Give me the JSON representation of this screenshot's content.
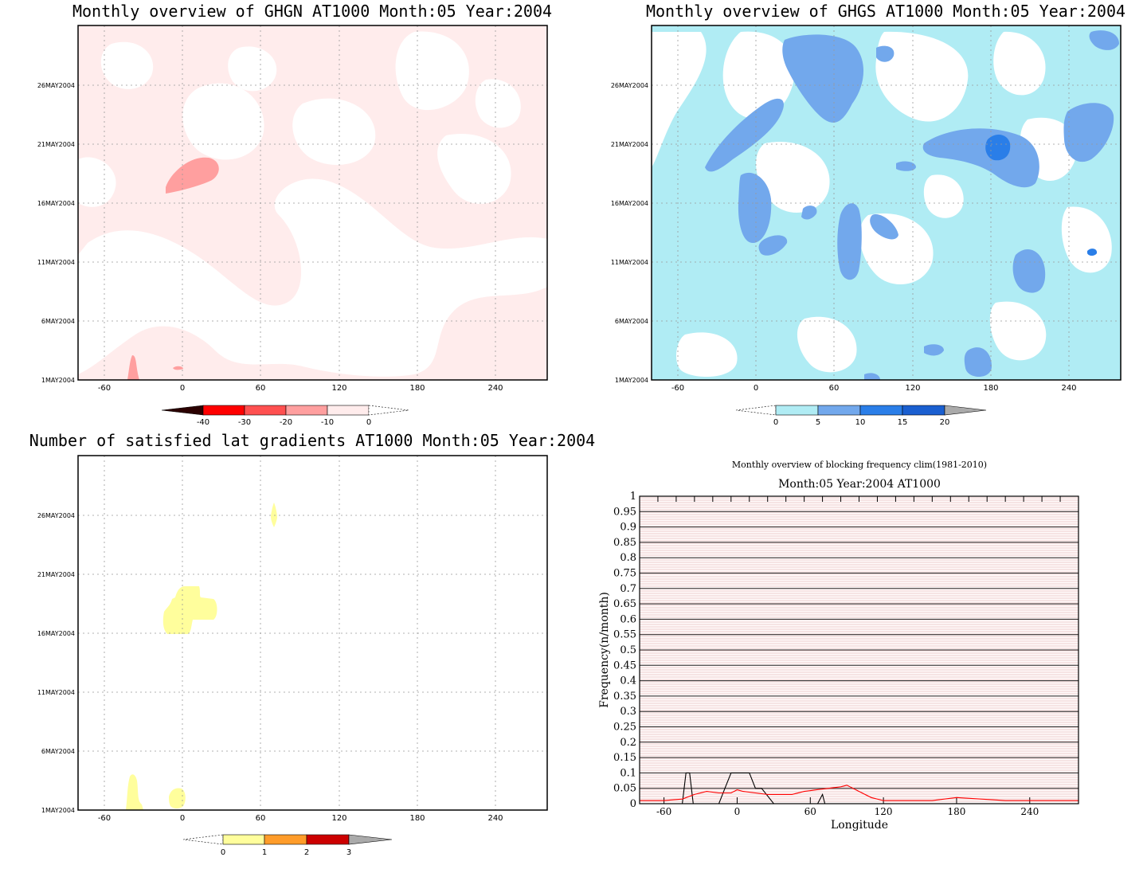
{
  "colors": {
    "ghgn_shade": "#ffecec",
    "ghgn_mid": "#ff9f9f",
    "ghgs_light": "#b0ecf4",
    "ghgs_mid": "#72a8ec",
    "ghgs_dark": "#2a7ee8",
    "grad_fill": "#fffe9c"
  },
  "chart_data": [
    {
      "type": "heatmap",
      "title": "Monthly overview of GHGN AT1000 Month:05 Year:2004",
      "x_ticks": [
        "-60",
        "0",
        "60",
        "120",
        "180",
        "240"
      ],
      "y_ticks": [
        "1MAY2004",
        "6MAY2004",
        "11MAY2004",
        "16MAY2004",
        "21MAY2004",
        "26MAY2004"
      ],
      "xlim": [
        -80,
        280
      ],
      "ylim": [
        1,
        31
      ],
      "grid": true,
      "colorbar": {
        "labels": [
          "-40",
          "-30",
          "-20",
          "-10",
          "0"
        ],
        "colors": [
          "#2b0000",
          "#ff0000",
          "#ff5050",
          "#ff9f9f",
          "#ffecec"
        ]
      }
    },
    {
      "type": "heatmap",
      "title": "Monthly overview of GHGS AT1000 Month:05 Year:2004",
      "x_ticks": [
        "-60",
        "0",
        "60",
        "120",
        "180",
        "240"
      ],
      "y_ticks": [
        "1MAY2004",
        "6MAY2004",
        "11MAY2004",
        "16MAY2004",
        "21MAY2004",
        "26MAY2004"
      ],
      "xlim": [
        -80,
        280
      ],
      "ylim": [
        1,
        31
      ],
      "grid": true,
      "colorbar": {
        "labels": [
          "0",
          "5",
          "10",
          "15",
          "20"
        ],
        "colors": [
          "#b0ecf4",
          "#72a8ec",
          "#2a7ee8",
          "#1a5fd0",
          "#aaaaaa"
        ]
      }
    },
    {
      "type": "heatmap",
      "title": "Number of satisfied lat gradients AT1000 Month:05 Year:2004",
      "x_ticks": [
        "-60",
        "0",
        "60",
        "120",
        "180",
        "240"
      ],
      "y_ticks": [
        "1MAY2004",
        "6MAY2004",
        "11MAY2004",
        "16MAY2004",
        "21MAY2004",
        "26MAY2004"
      ],
      "xlim": [
        -80,
        280
      ],
      "ylim": [
        1,
        31
      ],
      "grid": true,
      "colorbar": {
        "labels": [
          "0",
          "1",
          "2",
          "3"
        ],
        "colors": [
          "#fffe9c",
          "#ff9c2a",
          "#cc0000",
          "#aaaaaa"
        ]
      }
    },
    {
      "type": "line",
      "title": "Monthly overview of blocking frequency clim(1981-2010)",
      "subtitle": "Month:05 Year:2004  AT1000",
      "xlabel": "Longitude",
      "ylabel": "Frequency(n/month)",
      "xlim": [
        -80,
        280
      ],
      "ylim": [
        0,
        1
      ],
      "x_ticks": [
        "-60",
        "0",
        "60",
        "120",
        "180",
        "240"
      ],
      "y_ticks": [
        "0",
        "0.05",
        "0.1",
        "0.15",
        "0.2",
        "0.25",
        "0.3",
        "0.35",
        "0.4",
        "0.45",
        "0.5",
        "0.55",
        "0.6",
        "0.65",
        "0.7",
        "0.75",
        "0.8",
        "0.85",
        "0.9",
        "0.95",
        "1"
      ],
      "grid": true,
      "series": [
        {
          "color": "#000000",
          "x": [
            -80,
            -45,
            -42,
            -39,
            -36,
            -30,
            -15,
            -10,
            -5,
            0,
            5,
            10,
            15,
            20,
            30,
            40,
            60,
            66,
            70,
            72,
            75,
            90,
            120,
            180,
            240,
            280
          ],
          "y": [
            0,
            0,
            0.1,
            0.1,
            0,
            0,
            0,
            0.05,
            0.1,
            0.1,
            0.1,
            0.1,
            0.05,
            0.05,
            0,
            0,
            0,
            0,
            0.03,
            0,
            0,
            0,
            0,
            0,
            0,
            0
          ]
        },
        {
          "color": "#ff0000",
          "x": [
            -80,
            -60,
            -45,
            -35,
            -25,
            -15,
            -5,
            0,
            5,
            15,
            25,
            35,
            45,
            55,
            65,
            75,
            85,
            90,
            100,
            110,
            120,
            140,
            160,
            180,
            200,
            220,
            240,
            260,
            280
          ],
          "y": [
            0.01,
            0.01,
            0.015,
            0.03,
            0.04,
            0.035,
            0.035,
            0.045,
            0.04,
            0.035,
            0.03,
            0.03,
            0.03,
            0.04,
            0.045,
            0.05,
            0.055,
            0.06,
            0.04,
            0.02,
            0.01,
            0.01,
            0.01,
            0.02,
            0.015,
            0.01,
            0.01,
            0.01,
            0.01
          ]
        }
      ]
    }
  ]
}
